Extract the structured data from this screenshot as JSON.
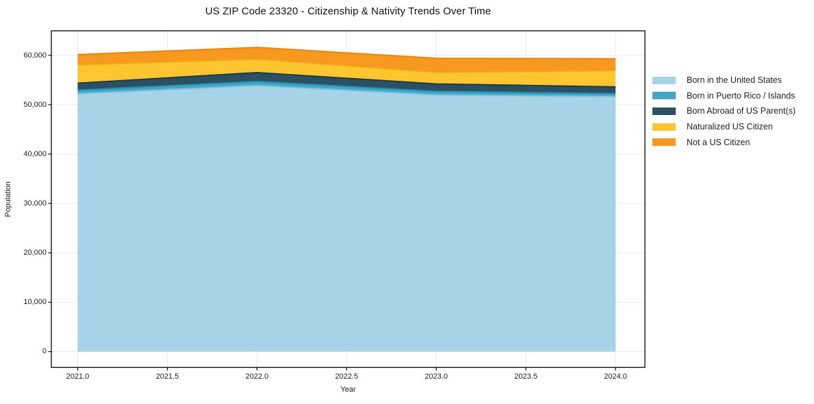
{
  "chart_data": {
    "type": "area",
    "stacked": true,
    "title": "US ZIP Code 23320 - Citizenship & Nativity Trends Over Time",
    "xlabel": "Year",
    "ylabel": "Population",
    "x": [
      2021,
      2022,
      2023,
      2024
    ],
    "series": [
      {
        "name": "Born in the United States",
        "color": "#a6d3e8",
        "edge_color": "#7cbfdc",
        "values": [
          52250,
          53900,
          52000,
          51650
        ]
      },
      {
        "name": "Born in Puerto Rico / Islands",
        "color": "#41a6c7",
        "edge_color": "#2490b0",
        "values": [
          700,
          800,
          700,
          600
        ]
      },
      {
        "name": "Born Abroad of US Parent(s)",
        "color": "#2b4f63",
        "edge_color": "#1e3a4a",
        "values": [
          1400,
          1800,
          1500,
          1350
        ]
      },
      {
        "name": "Naturalized US Citizen",
        "color": "#fdc52f",
        "edge_color": "#f2ab17",
        "values": [
          3700,
          2700,
          2350,
          3300
        ]
      },
      {
        "name": "Not a US Citizen",
        "color": "#f7981f",
        "edge_color": "#e8860f",
        "values": [
          2100,
          2400,
          2850,
          2400
        ]
      }
    ],
    "stacked_totals": [
      60150,
      61600,
      59400,
      59300
    ],
    "xticks": [
      {
        "value": 2021.0,
        "label": "2021.0"
      },
      {
        "value": 2021.5,
        "label": "2021.5"
      },
      {
        "value": 2022.0,
        "label": "2022.0"
      },
      {
        "value": 2022.5,
        "label": "2022.5"
      },
      {
        "value": 2023.0,
        "label": "2023.0"
      },
      {
        "value": 2023.5,
        "label": "2023.5"
      },
      {
        "value": 2024.0,
        "label": "2024.0"
      }
    ],
    "yticks": [
      {
        "value": 0,
        "label": "0"
      },
      {
        "value": 10000,
        "label": "10,000"
      },
      {
        "value": 20000,
        "label": "20,000"
      },
      {
        "value": 30000,
        "label": "30,000"
      },
      {
        "value": 40000,
        "label": "40,000"
      },
      {
        "value": 50000,
        "label": "50,000"
      },
      {
        "value": 60000,
        "label": "60,000"
      }
    ],
    "xlim": [
      2020.853,
      2024.164
    ],
    "ylim": [
      -3190,
      64960
    ],
    "grid": true,
    "legend_position": "right-outside",
    "colors": {
      "background": "#ffffff",
      "gridline": "#e9e9e9",
      "spine": "#000000",
      "tick_text": "#1a1a1a"
    }
  }
}
